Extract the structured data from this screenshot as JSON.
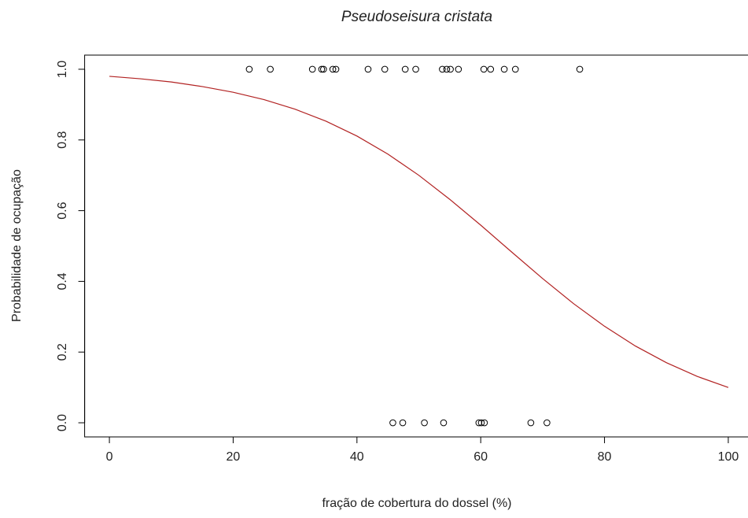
{
  "chart_data": {
    "type": "scatter",
    "title": "Pseudoseisura cristata",
    "xlabel": "fração de cobertura do dossel (%)",
    "ylabel": "Probabilidade de ocupação",
    "xlim": [
      -4,
      104
    ],
    "ylim": [
      -0.04,
      1.04
    ],
    "xticks": [
      0,
      20,
      40,
      60,
      80,
      100
    ],
    "yticks": [
      {
        "value": 0,
        "label": "0.0"
      },
      {
        "value": 0.2,
        "label": "0.2"
      },
      {
        "value": 0.4,
        "label": "0.4"
      },
      {
        "value": 0.6,
        "label": "0.6"
      },
      {
        "value": 0.8,
        "label": "0.8"
      },
      {
        "value": 1,
        "label": "1.0"
      }
    ],
    "series": [
      {
        "mode": "markers",
        "color": "#000000",
        "x": [
          22.6,
          26.0,
          32.8,
          34.3,
          34.6,
          36.1,
          36.6,
          41.8,
          44.5,
          47.8,
          49.5,
          53.8,
          54.5,
          55.1,
          56.4,
          60.5,
          61.6,
          63.8,
          65.6,
          76.0,
          45.8,
          47.4,
          50.9,
          54.0,
          59.7,
          60.1,
          60.6,
          68.1,
          70.7
        ],
        "values": [
          1,
          1,
          1,
          1,
          1,
          1,
          1,
          1,
          1,
          1,
          1,
          1,
          1,
          1,
          1,
          1,
          1,
          1,
          1,
          1,
          0,
          0,
          0,
          0,
          0,
          0,
          0,
          0,
          0
        ]
      },
      {
        "mode": "line",
        "color": "#b22222",
        "x": [
          0,
          5,
          10,
          15,
          20,
          25,
          30,
          35,
          40,
          45,
          50,
          55,
          60,
          65,
          70,
          75,
          80,
          85,
          90,
          95,
          100
        ],
        "values": [
          0.98,
          0.973,
          0.964,
          0.951,
          0.935,
          0.914,
          0.887,
          0.853,
          0.811,
          0.76,
          0.7,
          0.632,
          0.559,
          0.483,
          0.408,
          0.337,
          0.273,
          0.217,
          0.17,
          0.131,
          0.1
        ]
      }
    ]
  }
}
